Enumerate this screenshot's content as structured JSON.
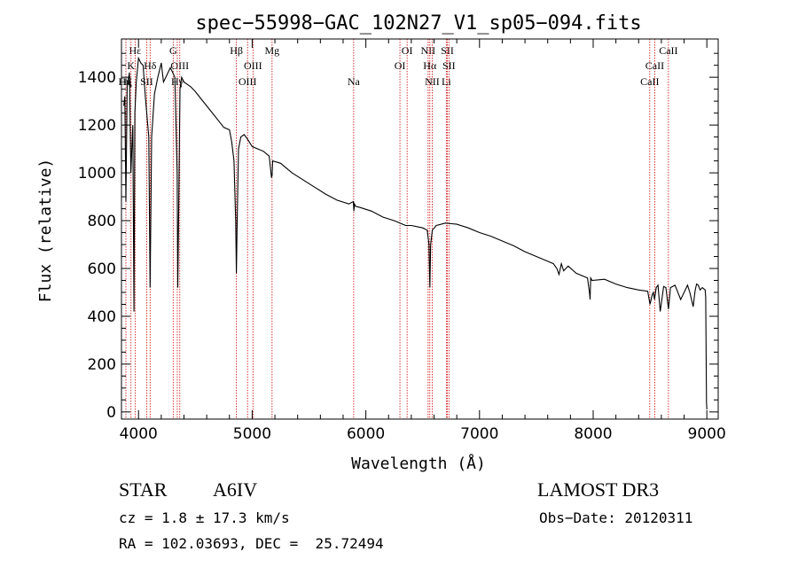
{
  "chart_data": {
    "type": "line",
    "title": "spec−55998−GAC_102N27_V1_sp05−094.fits",
    "xlabel": "Wavelength (Å)",
    "ylabel": "Flux (relative)",
    "xlim": [
      3850,
      9100
    ],
    "ylim": [
      -30,
      1560
    ],
    "x_ticks": [
      {
        "value": 4000,
        "label": "4000"
      },
      {
        "value": 5000,
        "label": "5000"
      },
      {
        "value": 6000,
        "label": "6000"
      },
      {
        "value": 7000,
        "label": "7000"
      },
      {
        "value": 8000,
        "label": "8000"
      },
      {
        "value": 9000,
        "label": "9000"
      }
    ],
    "y_ticks": [
      {
        "value": 0,
        "label": "0"
      },
      {
        "value": 200,
        "label": "200"
      },
      {
        "value": 400,
        "label": "400"
      },
      {
        "value": 600,
        "label": "600"
      },
      {
        "value": 800,
        "label": "800"
      },
      {
        "value": 1000,
        "label": "1000"
      },
      {
        "value": 1200,
        "label": "1200"
      },
      {
        "value": 1400,
        "label": "1400"
      }
    ],
    "series": [
      {
        "name": "spectrum",
        "x": [
          3870,
          3880,
          3889,
          3900,
          3920,
          3933,
          3950,
          3960,
          3968,
          3980,
          4000,
          4020,
          4040,
          4060,
          4090,
          4102,
          4115,
          4140,
          4170,
          4200,
          4220,
          4250,
          4280,
          4300,
          4320,
          4330,
          4340,
          4345,
          4355,
          4365,
          4380,
          4400,
          4430,
          4460,
          4500,
          4550,
          4600,
          4650,
          4700,
          4750,
          4800,
          4820,
          4840,
          4855,
          4861,
          4868,
          4880,
          4900,
          4930,
          4960,
          5000,
          5050,
          5100,
          5150,
          5170,
          5175,
          5180,
          5250,
          5350,
          5450,
          5550,
          5650,
          5750,
          5850,
          5890,
          5895,
          5900,
          5910,
          5950,
          6050,
          6150,
          6250,
          6350,
          6400,
          6500,
          6540,
          6555,
          6563,
          6570,
          6585,
          6620,
          6700,
          6800,
          6900,
          7000,
          7100,
          7200,
          7300,
          7400,
          7500,
          7600,
          7650,
          7680,
          7700,
          7720,
          7740,
          7760,
          7780,
          7850,
          7950,
          7970,
          7973,
          7978,
          7990,
          8100,
          8200,
          8300,
          8400,
          8480,
          8500,
          8520,
          8530,
          8540,
          8555,
          8570,
          8590,
          8620,
          8640,
          8662,
          8680,
          8720,
          8770,
          8830,
          8850,
          8880,
          8895,
          8900,
          8910,
          8925,
          8940,
          8950,
          8960,
          8985,
          8990,
          8997,
          9000
        ],
        "values": [
          1280,
          1320,
          880,
          1360,
          1420,
          1000,
          1200,
          420,
          1250,
          1380,
          1480,
          1460,
          1450,
          1320,
          1150,
          520,
          1150,
          1330,
          1400,
          1460,
          1380,
          1410,
          1440,
          1420,
          1400,
          1200,
          1000,
          520,
          900,
          1350,
          1400,
          1380,
          1370,
          1360,
          1340,
          1310,
          1280,
          1250,
          1220,
          1190,
          1180,
          1130,
          1050,
          800,
          580,
          800,
          1100,
          1150,
          1160,
          1140,
          1110,
          1100,
          1090,
          1070,
          980,
          990,
          1050,
          1040,
          1000,
          970,
          940,
          910,
          885,
          870,
          880,
          840,
          870,
          860,
          855,
          840,
          815,
          800,
          780,
          780,
          770,
          760,
          700,
          520,
          700,
          760,
          780,
          790,
          785,
          770,
          750,
          735,
          715,
          695,
          670,
          650,
          630,
          620,
          600,
          575,
          620,
          590,
          600,
          610,
          580,
          560,
          490,
          470,
          560,
          550,
          555,
          535,
          520,
          510,
          505,
          450,
          490,
          500,
          470,
          520,
          530,
          420,
          525,
          520,
          430,
          520,
          530,
          470,
          530,
          500,
          440,
          500,
          515,
          535,
          530,
          510,
          515,
          520,
          510,
          480,
          40,
          10
        ]
      }
    ],
    "lines": [
      {
        "label": "Hε",
        "wavelength": 3970,
        "row": 0
      },
      {
        "label": "K",
        "wavelength": 3934,
        "row": 1
      },
      {
        "label": "Hη",
        "wavelength": 3835,
        "row": 2
      },
      {
        "label": "Hζ",
        "wavelength": 3889,
        "row": 2
      },
      {
        "label": "SII",
        "wavelength": 4072,
        "row": 2
      },
      {
        "label": "Hδ",
        "wavelength": 4102,
        "row": 1
      },
      {
        "label": "G",
        "wavelength": 4305,
        "row": 0
      },
      {
        "label": "OIII",
        "wavelength": 4363,
        "row": 1
      },
      {
        "label": "Hγ",
        "wavelength": 4341,
        "row": 2
      },
      {
        "label": "Hβ",
        "wavelength": 4861,
        "row": 0
      },
      {
        "label": "OIII",
        "wavelength": 4959,
        "row": 2
      },
      {
        "label": "OIII",
        "wavelength": 5007,
        "row": 1
      },
      {
        "label": "Mg",
        "wavelength": 5175,
        "row": 0
      },
      {
        "label": "Na",
        "wavelength": 5893,
        "row": 2
      },
      {
        "label": "OI",
        "wavelength": 6300,
        "row": 1
      },
      {
        "label": "OI",
        "wavelength": 6363,
        "row": 0
      },
      {
        "label": "NII",
        "wavelength": 6548,
        "row": 0
      },
      {
        "label": "Hα",
        "wavelength": 6563,
        "row": 1
      },
      {
        "label": "NII",
        "wavelength": 6584,
        "row": 2
      },
      {
        "label": "SII",
        "wavelength": 6717,
        "row": 0
      },
      {
        "label": "Li",
        "wavelength": 6708,
        "row": 2
      },
      {
        "label": "SII",
        "wavelength": 6731,
        "row": 1
      },
      {
        "label": "CaII",
        "wavelength": 8498,
        "row": 2
      },
      {
        "label": "CaII",
        "wavelength": 8542,
        "row": 1
      },
      {
        "label": "CaII",
        "wavelength": 8662,
        "row": 0
      }
    ],
    "colors": {
      "spectrum": "#000000",
      "lines": "#cc0000",
      "axes": "#000000"
    }
  },
  "info": {
    "object_class": "STAR",
    "subclass": "A6IV",
    "survey": "LAMOST DR3",
    "cz": "cz = 1.8 ± 17.3 km/s",
    "obs_date": "Obs−Date: 20120311",
    "coords": "RA = 102.03693, DEC =  25.72494"
  }
}
